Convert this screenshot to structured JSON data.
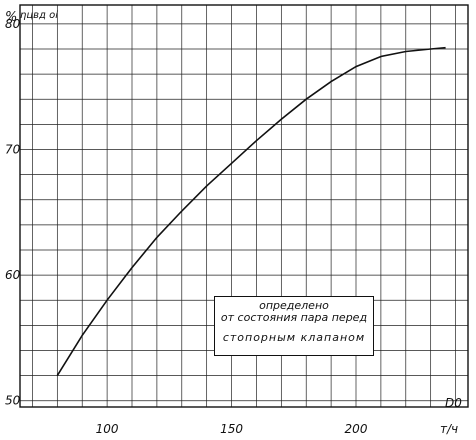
{
  "chart_data": {
    "type": "line",
    "y_unit_label": "%",
    "y_symbol": "ηцвд oi",
    "x_symbol": "D0",
    "x_unit": "т/ч",
    "x_ticks": [
      100,
      150,
      200
    ],
    "y_ticks": [
      50,
      60,
      70,
      80
    ],
    "xlim": [
      65,
      245
    ],
    "ylim": [
      49.5,
      81.5
    ],
    "grid": true,
    "series": [
      {
        "x": [
          80,
          90,
          100,
          110,
          120,
          130,
          140,
          150,
          160,
          170,
          180,
          190,
          200,
          210,
          220,
          230,
          236
        ],
        "y": [
          52.0,
          55.2,
          58.0,
          60.6,
          63.0,
          65.1,
          67.1,
          68.9,
          70.7,
          72.4,
          74.0,
          75.4,
          76.6,
          77.4,
          77.8,
          78.0,
          78.1
        ]
      }
    ],
    "annotation": [
      "определено",
      "от состояния пара перед",
      "стопорным клапаном"
    ]
  }
}
